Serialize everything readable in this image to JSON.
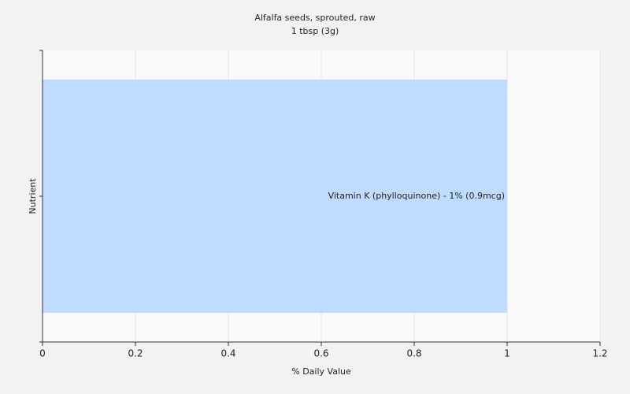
{
  "chart_data": {
    "type": "hbar",
    "title": "Alfalfa seeds, sprouted, raw",
    "subtitle": "1 tbsp (3g)",
    "x_label": "% Daily Value",
    "y_label": "Nutrient",
    "categories": [
      null
    ],
    "values": [
      1
    ],
    "value_labels": [
      "Vitamin K (phylloquinone) - 1% (0.9mcg)"
    ],
    "color": "#bfdbff",
    "xlim": [
      0,
      1.2
    ],
    "xticks": [
      0,
      0.2,
      0.4,
      0.6,
      0.8,
      1,
      1.2
    ],
    "grid": true
  }
}
